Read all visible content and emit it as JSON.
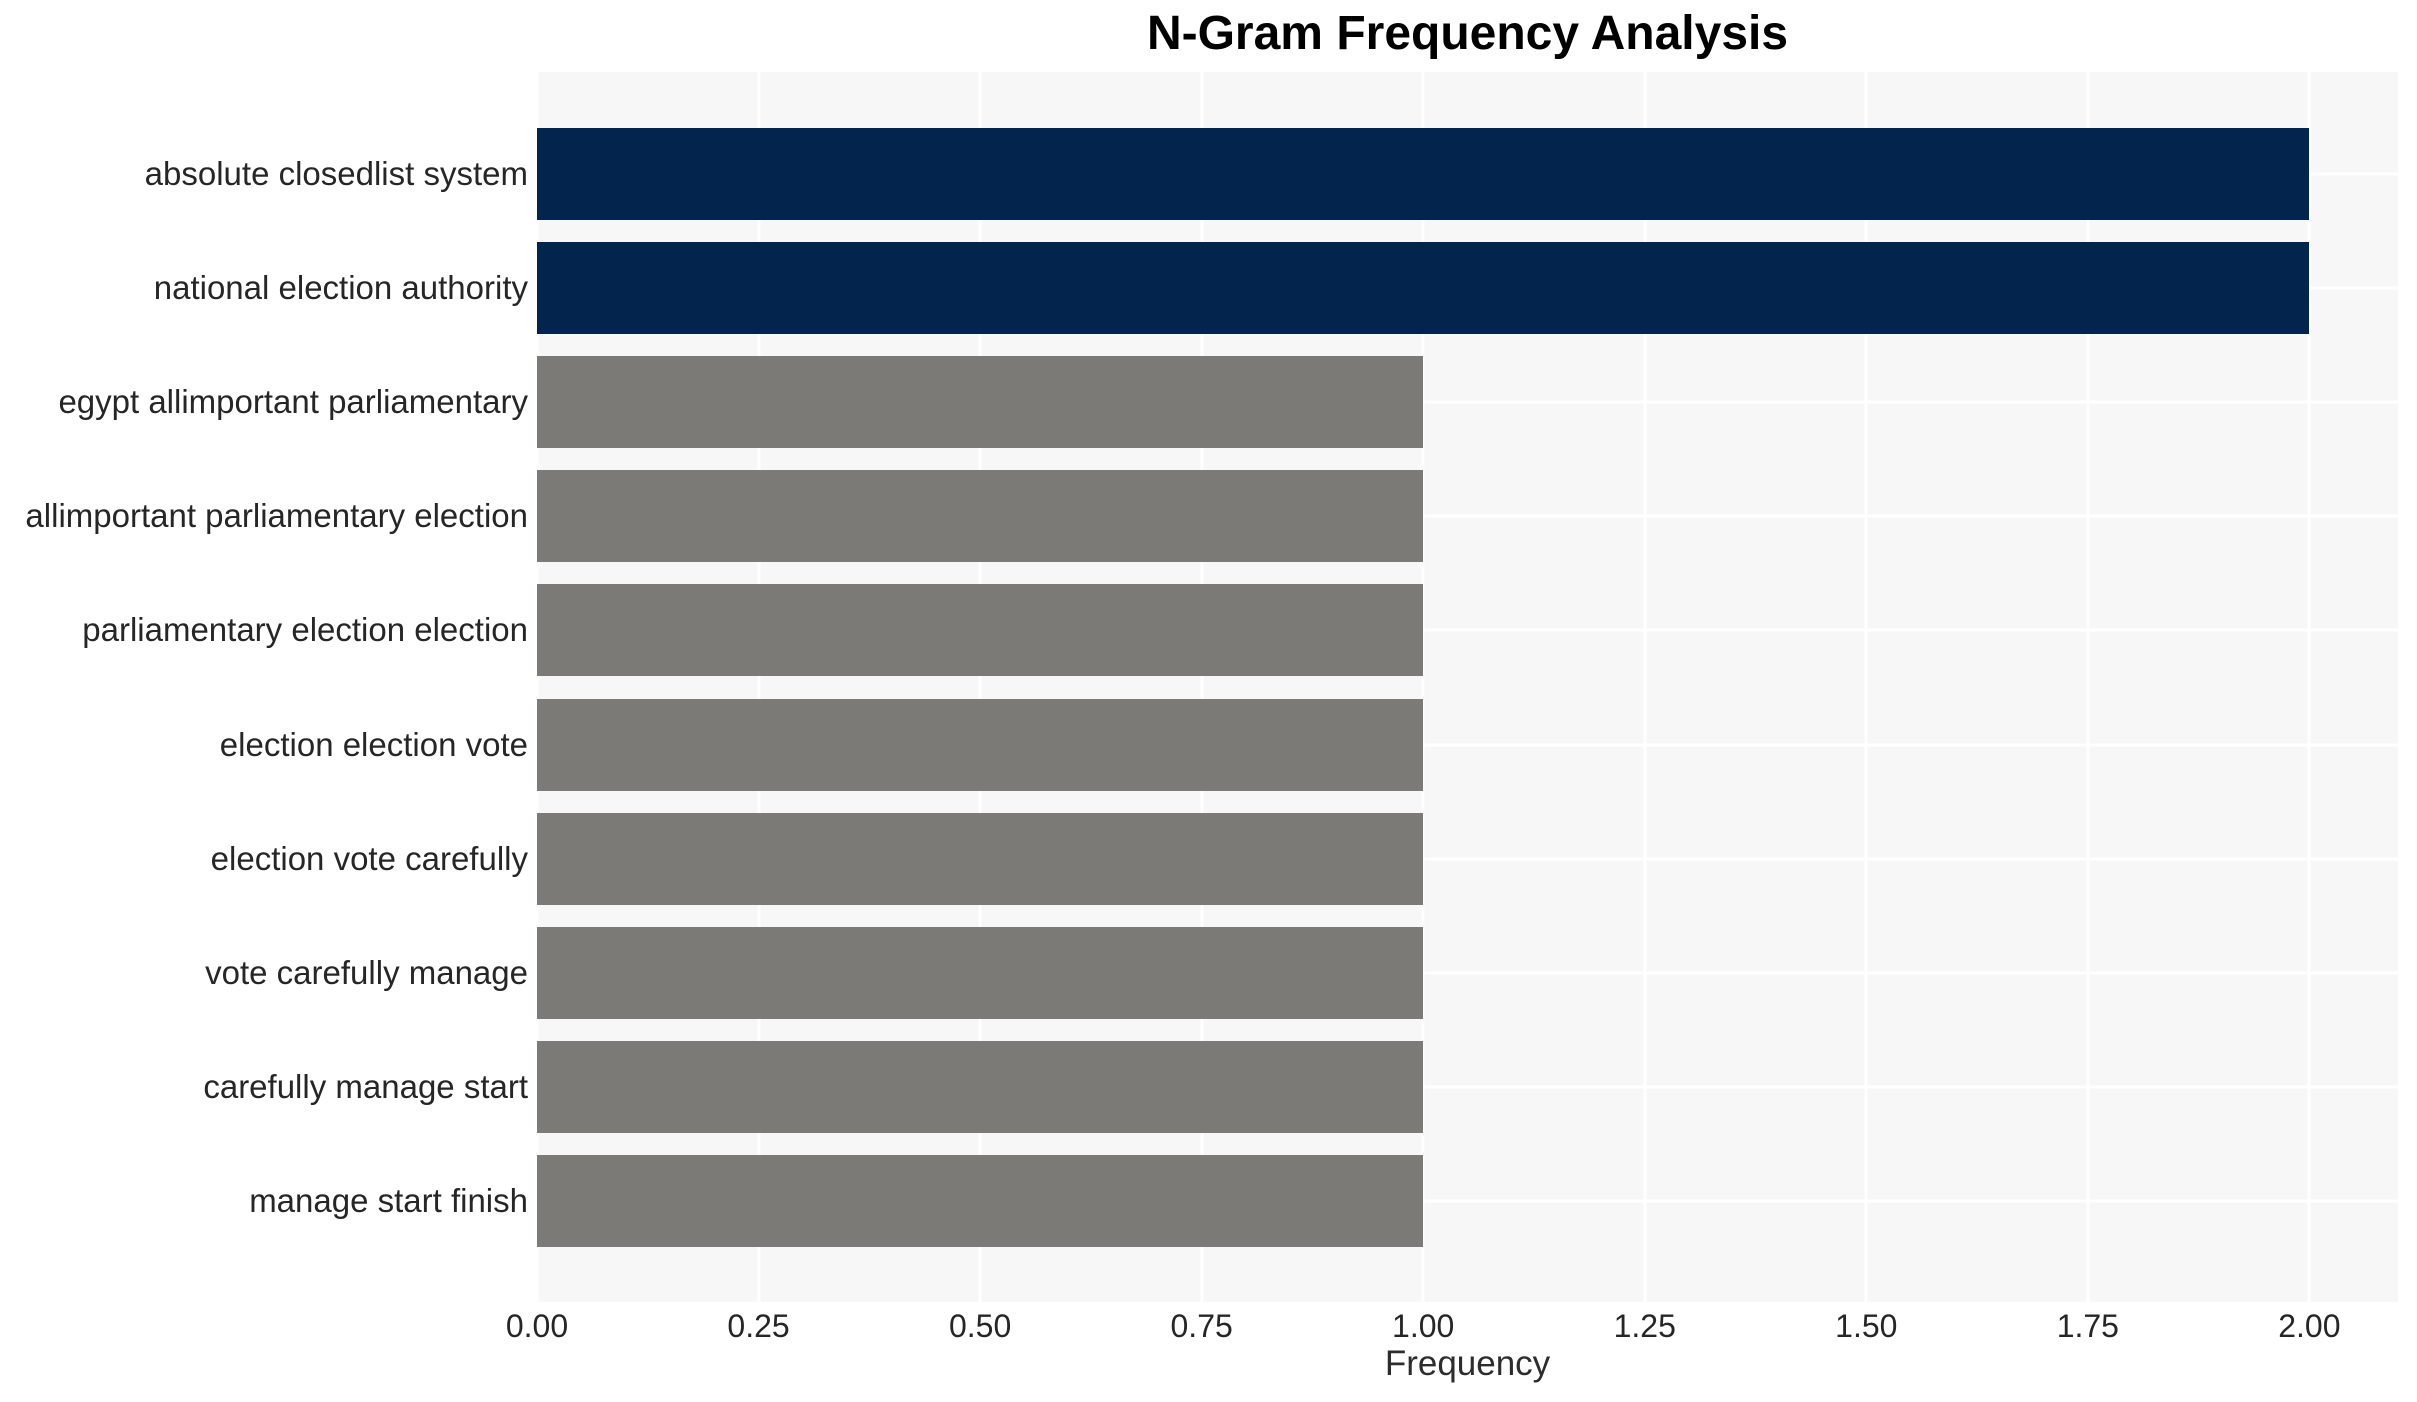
{
  "title": "N-Gram Frequency Analysis",
  "colors": {
    "highlight_bar": "#03254d",
    "default_bar": "#7b7a76",
    "panel_background": "#f7f7f7",
    "gridline": "#ffffff",
    "tick_text": "#262626",
    "title_text": "#000000"
  },
  "chart_data": {
    "type": "bar",
    "orientation": "horizontal",
    "title": "N-Gram Frequency Analysis",
    "xlabel": "Frequency",
    "ylabel": "",
    "categories": [
      "absolute closedlist system",
      "national election authority",
      "egypt allimportant parliamentary",
      "allimportant parliamentary election",
      "parliamentary election election",
      "election election vote",
      "election vote carefully",
      "vote carefully manage",
      "carefully manage start",
      "manage start finish"
    ],
    "values": [
      2,
      2,
      1,
      1,
      1,
      1,
      1,
      1,
      1,
      1
    ],
    "bar_colors": [
      "#03254d",
      "#03254d",
      "#7b7a76",
      "#7b7a76",
      "#7b7a76",
      "#7b7a76",
      "#7b7a76",
      "#7b7a76",
      "#7b7a76",
      "#7b7a76"
    ],
    "x_tick_labels": [
      "0.00",
      "0.25",
      "0.50",
      "0.75",
      "1.00",
      "1.25",
      "1.50",
      "1.75",
      "2.00"
    ],
    "x_tick_values": [
      0,
      0.25,
      0.5,
      0.75,
      1.0,
      1.25,
      1.5,
      1.75,
      2.0
    ],
    "xlim": [
      0,
      2.1
    ],
    "grid": true,
    "grid_color": "#ffffff",
    "legend": "none"
  }
}
